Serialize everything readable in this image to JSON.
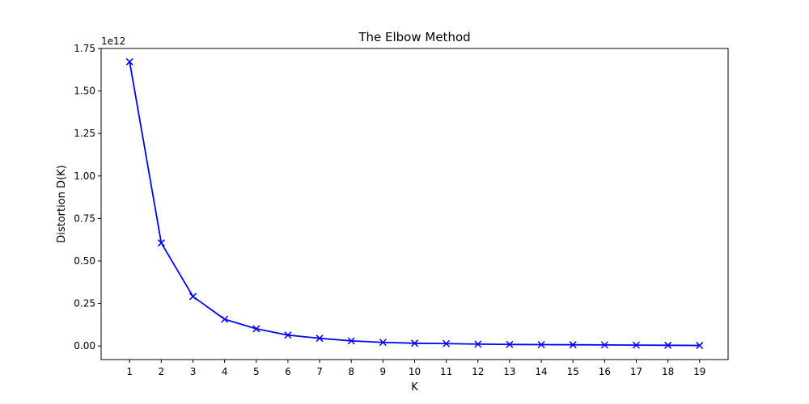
{
  "chart_data": {
    "type": "line",
    "title": "The Elbow Method",
    "xlabel": "K",
    "ylabel": "Distortion D(K)",
    "y_offset_label": "1e12",
    "x": [
      1,
      2,
      3,
      4,
      5,
      6,
      7,
      8,
      9,
      10,
      11,
      12,
      13,
      14,
      15,
      16,
      17,
      18,
      19
    ],
    "series": [
      {
        "values": [
          1.672,
          0.606,
          0.291,
          0.157,
          0.101,
          0.064,
          0.045,
          0.03,
          0.021,
          0.016,
          0.014,
          0.011,
          0.009,
          0.008,
          0.007,
          0.006,
          0.005,
          0.004,
          0.003
        ],
        "color": "#0000ff",
        "marker": "x"
      }
    ],
    "xlim": [
      0.1,
      19.9
    ],
    "ylim": [
      -0.08,
      1.75
    ],
    "x_ticks": [
      1,
      2,
      3,
      4,
      5,
      6,
      7,
      8,
      9,
      10,
      11,
      12,
      13,
      14,
      15,
      16,
      17,
      18,
      19
    ],
    "y_ticks": [
      0.0,
      0.25,
      0.5,
      0.75,
      1.0,
      1.25,
      1.5,
      1.75
    ],
    "y_tick_labels": [
      "0.00",
      "0.25",
      "0.50",
      "0.75",
      "1.00",
      "1.25",
      "1.50",
      "1.75"
    ],
    "grid": false,
    "legend": "none"
  }
}
